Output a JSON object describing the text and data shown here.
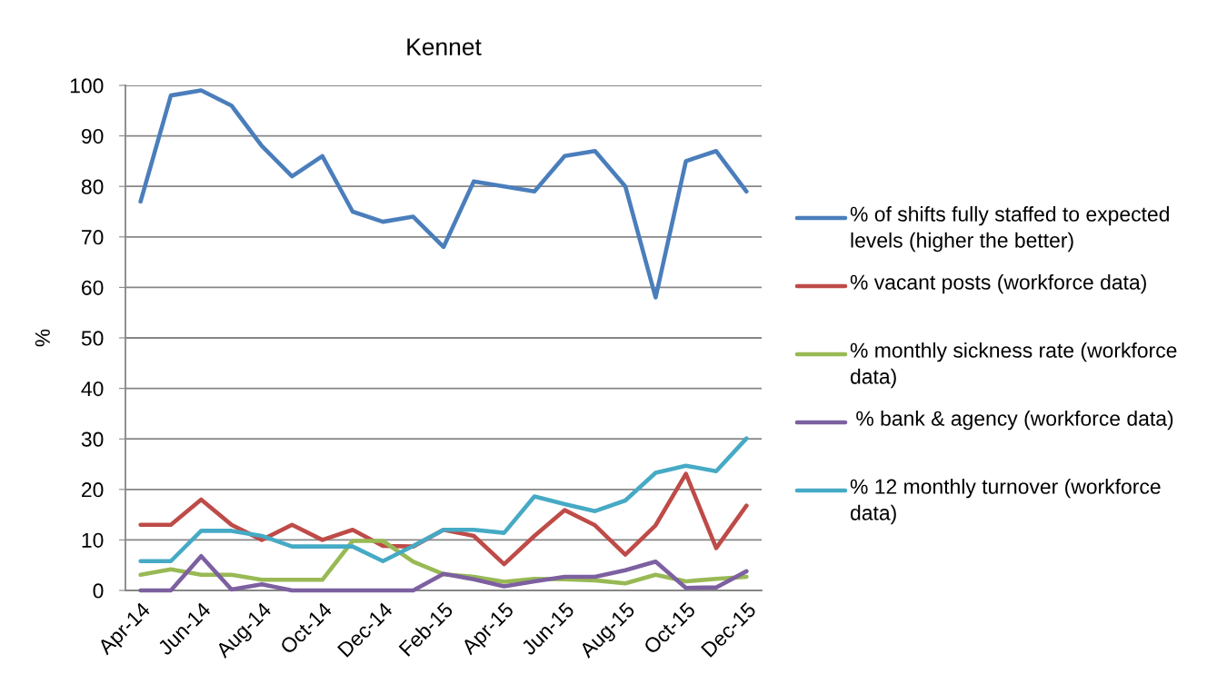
{
  "chart_data": {
    "type": "line",
    "title": "Kennet",
    "ylabel": "%",
    "categories": [
      "Apr-14",
      null,
      "Jun-14",
      null,
      "Aug-14",
      null,
      "Oct-14",
      null,
      "Dec-14",
      null,
      "Feb-15",
      null,
      "Apr-15",
      null,
      "Jun-15",
      null,
      "Aug-15",
      null,
      "Oct-15",
      null,
      "Dec-15"
    ],
    "series": [
      {
        "name": "% of shifts fully staffed to expected levels (higher the better)",
        "color": "#4a7ebb",
        "values": [
          77,
          98,
          99,
          96,
          88,
          82,
          86,
          75,
          73,
          74,
          68,
          81,
          80,
          79,
          86,
          87,
          80,
          58,
          85,
          87,
          79
        ]
      },
      {
        "name": "% vacant posts (workforce data)",
        "color": "#be4b48",
        "values": [
          13,
          13,
          18,
          13,
          10,
          13,
          10,
          12,
          8.8,
          8.7,
          12,
          10.8,
          5.2,
          10.8,
          15.9,
          12.9,
          7.1,
          12.9,
          23.1,
          8.4,
          16.8
        ]
      },
      {
        "name": "% monthly sickness rate (workforce data)",
        "color": "#98b954",
        "values": [
          3.1,
          4.2,
          3.1,
          3.1,
          2.1,
          2.1,
          2.1,
          9.8,
          9.8,
          5.7,
          3.2,
          2.7,
          1.7,
          2.3,
          2.2,
          2.0,
          1.4,
          3.1,
          1.8,
          2.3,
          2.7
        ]
      },
      {
        "name": " % bank & agency (workforce data)",
        "color": "#7d60a0",
        "values": [
          0,
          0,
          6.8,
          0.2,
          1.2,
          0,
          0,
          0,
          0,
          0,
          3.3,
          2.2,
          0.8,
          1.8,
          2.7,
          2.7,
          4.0,
          5.7,
          0.5,
          0.6,
          3.8
        ]
      },
      {
        "name": "% 12 monthly turnover (workforce data)",
        "color": "#46aac5",
        "values": [
          5.8,
          5.8,
          11.8,
          11.8,
          10.8,
          8.7,
          8.7,
          8.7,
          5.8,
          8.8,
          12,
          12,
          11.4,
          18.6,
          17.1,
          15.7,
          17.8,
          23.3,
          24.7,
          23.6,
          30.1
        ]
      }
    ],
    "ylim": [
      0,
      100
    ],
    "yticks": [
      0,
      10,
      20,
      30,
      40,
      50,
      60,
      70,
      80,
      90,
      100
    ],
    "grid": "y",
    "legend": "right"
  }
}
